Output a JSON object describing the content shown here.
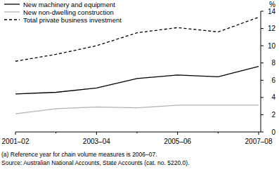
{
  "chart_data": {
    "type": "line",
    "y_label": "%",
    "categories": [
      "2001–02",
      null,
      "2003–04",
      null,
      "2005–06",
      null,
      "2007–08"
    ],
    "series": [
      {
        "name": "New machinery and equipment",
        "color": "#000000",
        "line_style": "solid",
        "values": [
          4.4,
          4.6,
          5.1,
          6.2,
          6.6,
          6.4,
          7.6
        ]
      },
      {
        "name": "New non-dwelling construction",
        "color": "#b3b3b3",
        "line_style": "solid",
        "values": [
          2.1,
          2.7,
          2.9,
          2.8,
          3.1,
          3.1,
          3.1
        ]
      },
      {
        "name": "Total private business investment",
        "color": "#000000",
        "line_style": "dashed",
        "values": [
          8.2,
          9.0,
          10.0,
          11.5,
          12.1,
          11.6,
          13.3
        ]
      }
    ],
    "ylim": [
      0,
      14
    ],
    "yticks": [
      0,
      2,
      4,
      6,
      8,
      10,
      12,
      14
    ],
    "grid": false,
    "legend": "top-left",
    "footnote": "(a) Reference year for chain volume measures is 2006–07.",
    "source": "Source: Australian National Accounts, State Accounts (cat. no. 5220.0)."
  }
}
